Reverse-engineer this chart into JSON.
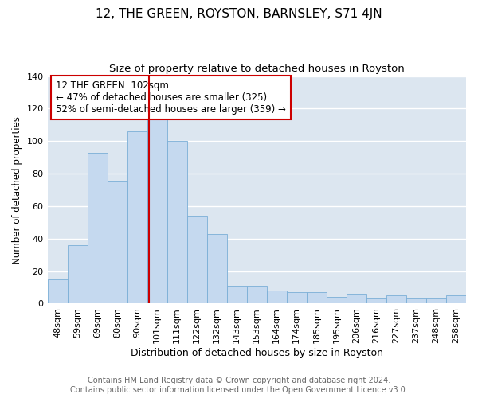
{
  "title": "12, THE GREEN, ROYSTON, BARNSLEY, S71 4JN",
  "subtitle": "Size of property relative to detached houses in Royston",
  "xlabel": "Distribution of detached houses by size in Royston",
  "ylabel": "Number of detached properties",
  "categories": [
    "48sqm",
    "59sqm",
    "69sqm",
    "80sqm",
    "90sqm",
    "101sqm",
    "111sqm",
    "122sqm",
    "132sqm",
    "143sqm",
    "153sqm",
    "164sqm",
    "174sqm",
    "185sqm",
    "195sqm",
    "206sqm",
    "216sqm",
    "227sqm",
    "237sqm",
    "248sqm",
    "258sqm"
  ],
  "values": [
    15,
    36,
    93,
    75,
    106,
    114,
    100,
    54,
    43,
    11,
    11,
    8,
    7,
    7,
    4,
    6,
    3,
    5,
    3,
    3,
    5
  ],
  "bar_color": "#c5d9ef",
  "bar_edge_color": "#7aaed6",
  "vline_color": "#cc0000",
  "annotation_text": "12 THE GREEN: 102sqm\n← 47% of detached houses are smaller (325)\n52% of semi-detached houses are larger (359) →",
  "annotation_box_color": "#ffffff",
  "annotation_box_edge": "#cc0000",
  "ylim": [
    0,
    140
  ],
  "yticks": [
    0,
    20,
    40,
    60,
    80,
    100,
    120,
    140
  ],
  "background_color": "#dce6f0",
  "grid_color": "#ffffff",
  "footer": "Contains HM Land Registry data © Crown copyright and database right 2024.\nContains public sector information licensed under the Open Government Licence v3.0.",
  "title_fontsize": 11,
  "subtitle_fontsize": 9.5,
  "xlabel_fontsize": 9,
  "ylabel_fontsize": 8.5,
  "tick_fontsize": 8,
  "annotation_fontsize": 8.5,
  "footer_fontsize": 7
}
